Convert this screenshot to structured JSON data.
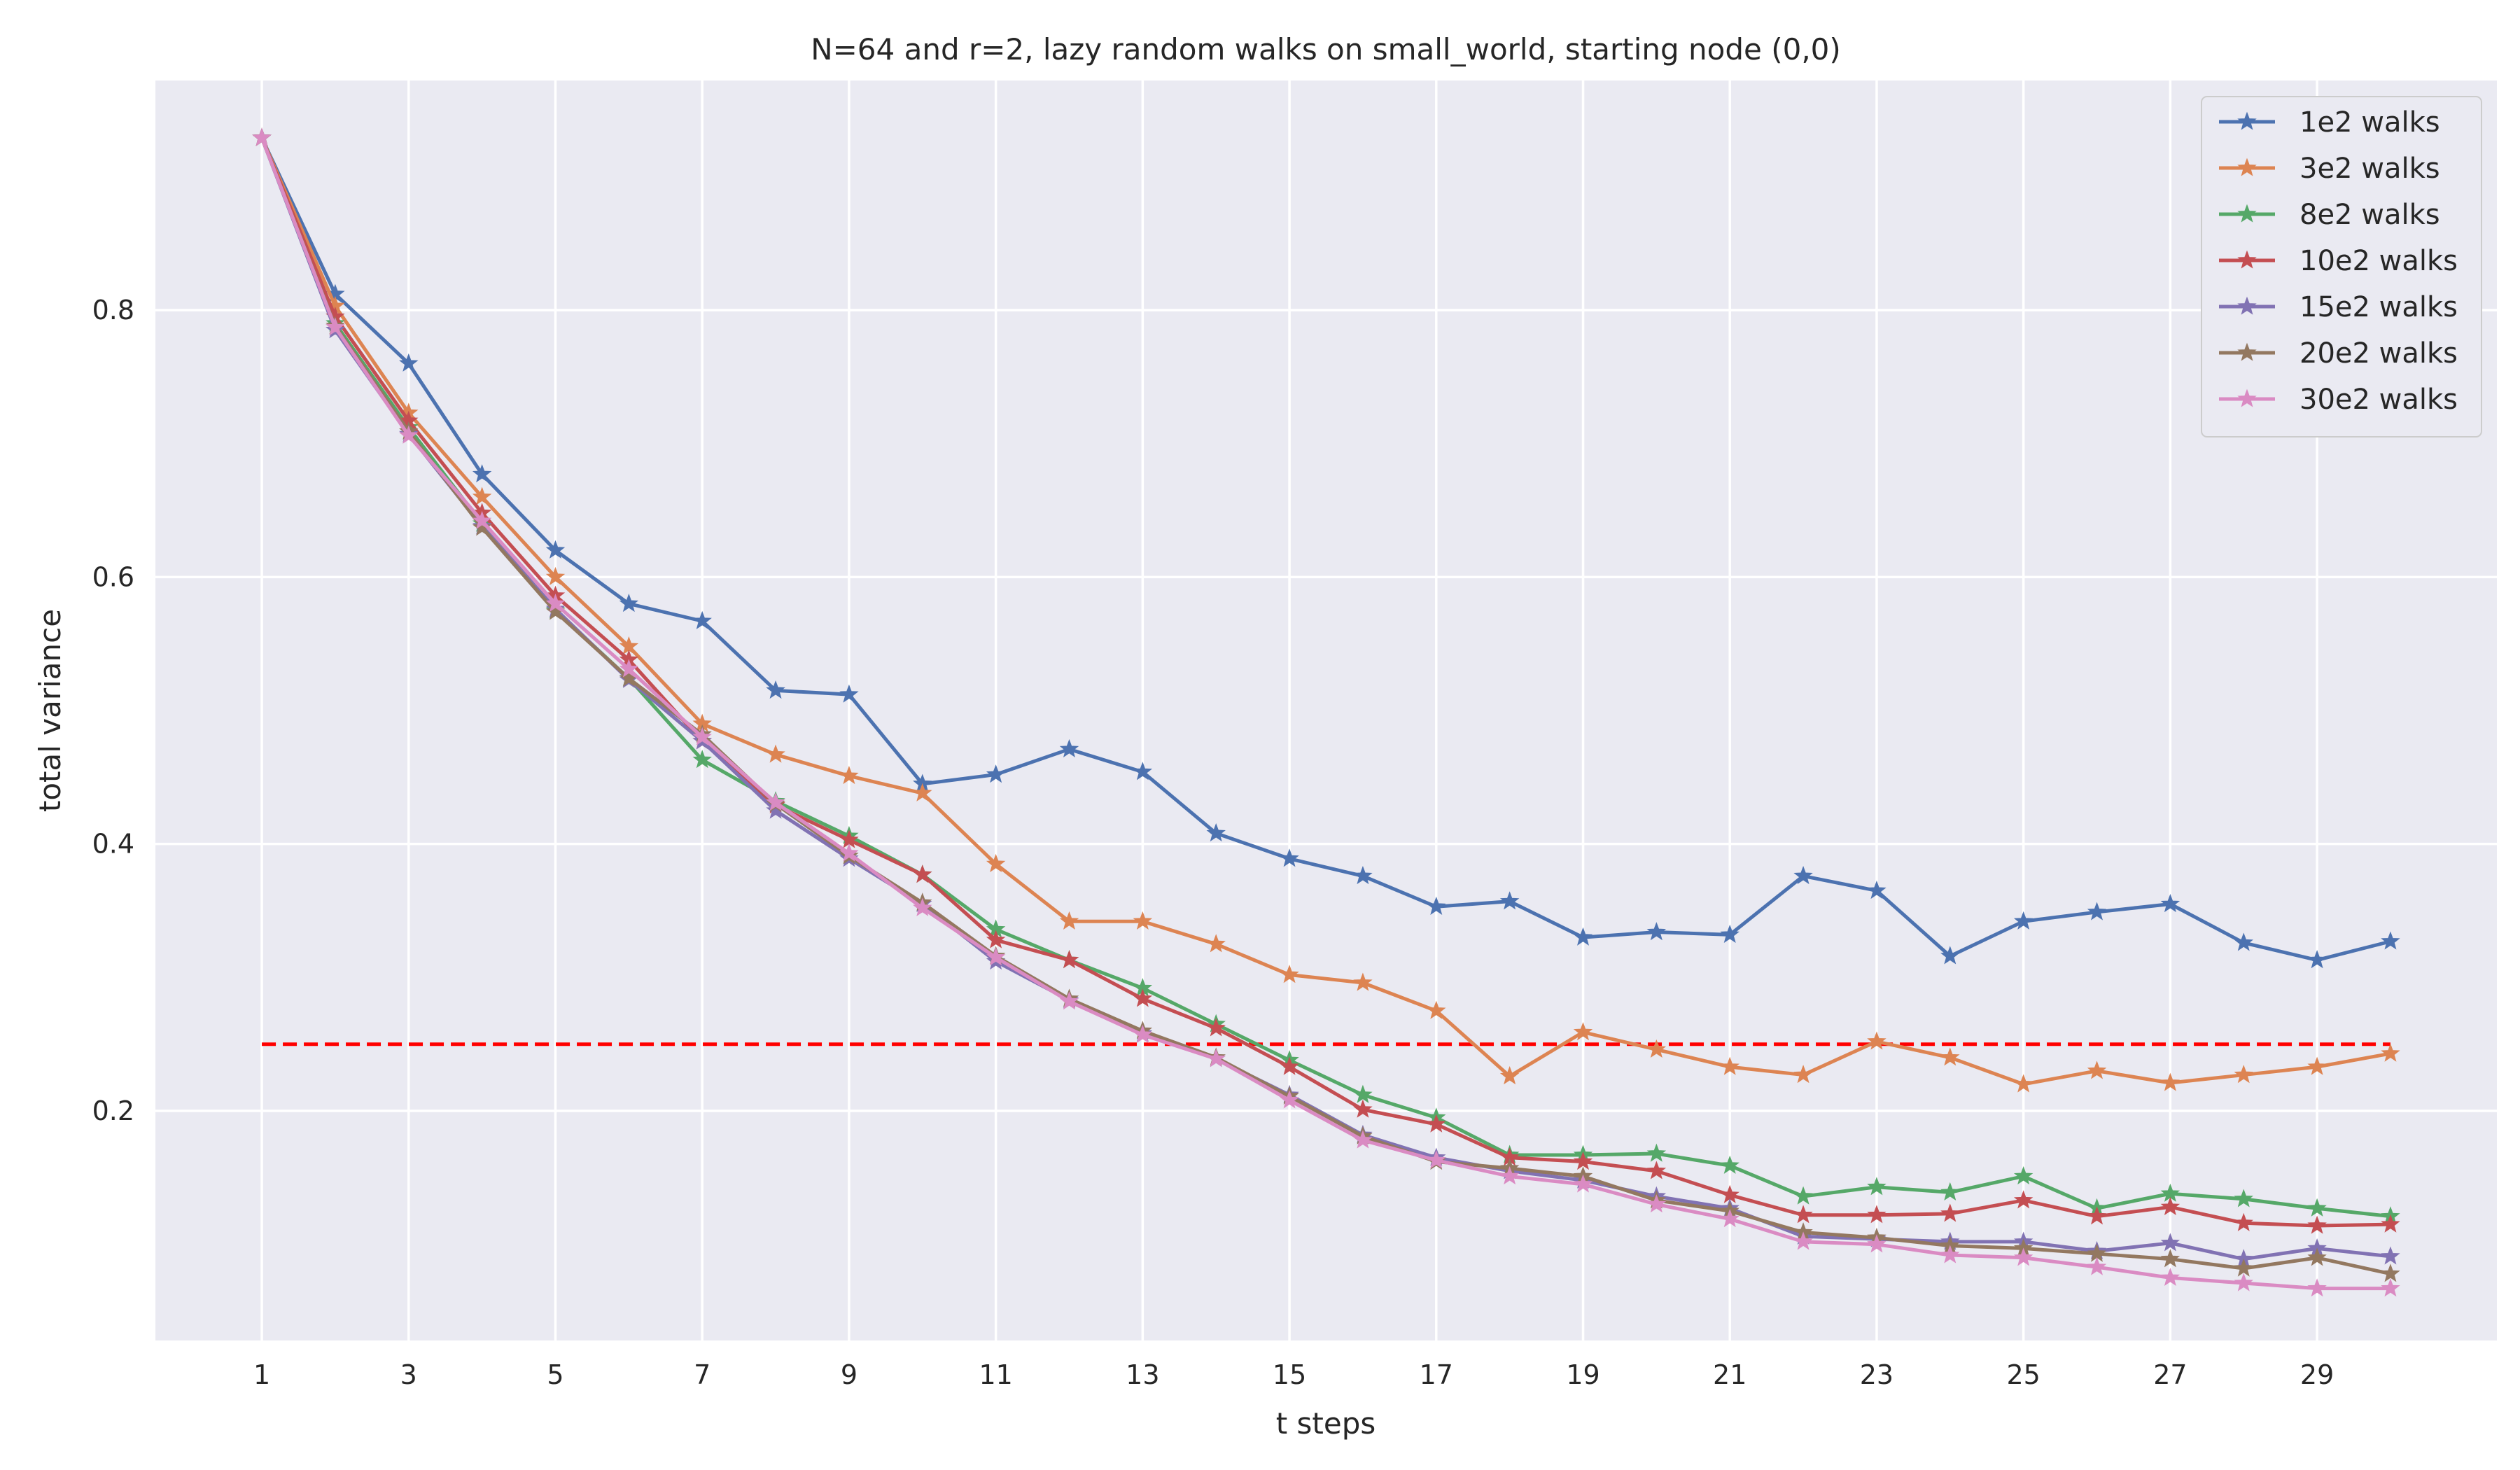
{
  "chart_data": {
    "type": "line",
    "title": "N=64 and r=2, lazy random walks on small_world, starting node (0,0)",
    "xlabel": "t steps",
    "ylabel": "total variance",
    "x": [
      1,
      2,
      3,
      4,
      5,
      6,
      7,
      8,
      9,
      10,
      11,
      12,
      13,
      14,
      15,
      16,
      17,
      18,
      19,
      20,
      21,
      22,
      23,
      24,
      25,
      26,
      27,
      28,
      29,
      30
    ],
    "xticks": [
      "1",
      "3",
      "5",
      "7",
      "9",
      "11",
      "13",
      "15",
      "17",
      "19",
      "21",
      "23",
      "25",
      "27",
      "29"
    ],
    "xtick_values": [
      1,
      3,
      5,
      7,
      9,
      11,
      13,
      15,
      17,
      19,
      21,
      23,
      25,
      27,
      29
    ],
    "yticks": [
      "0.2",
      "0.4",
      "0.6",
      "0.8"
    ],
    "ytick_values": [
      0.2,
      0.4,
      0.6,
      0.8
    ],
    "xlim": [
      -0.45,
      31.45
    ],
    "ylim": [
      0.028,
      0.972
    ],
    "grid": true,
    "legend_position": "top-right",
    "series": [
      {
        "name": "1e2 walks",
        "color": "#4c72b0",
        "values": [
          0.929,
          0.812,
          0.76,
          0.677,
          0.62,
          0.58,
          0.567,
          0.515,
          0.512,
          0.445,
          0.452,
          0.471,
          0.454,
          0.408,
          0.389,
          0.376,
          0.353,
          0.357,
          0.33,
          0.334,
          0.332,
          0.376,
          0.365,
          0.316,
          0.342,
          0.349,
          0.355,
          0.326,
          0.313,
          0.327
        ]
      },
      {
        "name": "3e2 walks",
        "color": "#dd8452",
        "values": [
          0.929,
          0.803,
          0.723,
          0.66,
          0.6,
          0.548,
          0.49,
          0.467,
          0.451,
          0.438,
          0.385,
          0.342,
          0.342,
          0.325,
          0.302,
          0.296,
          0.275,
          0.226,
          0.259,
          0.246,
          0.233,
          0.227,
          0.252,
          0.24,
          0.22,
          0.23,
          0.221,
          0.227,
          0.233,
          0.243
        ]
      },
      {
        "name": "8e2 walks",
        "color": "#55a868",
        "values": [
          0.929,
          0.79,
          0.712,
          0.64,
          0.575,
          0.524,
          0.463,
          0.432,
          0.406,
          0.377,
          0.336,
          0.313,
          0.292,
          0.265,
          0.238,
          0.212,
          0.195,
          0.167,
          0.167,
          0.168,
          0.159,
          0.136,
          0.143,
          0.139,
          0.151,
          0.127,
          0.138,
          0.134,
          0.127,
          0.121
        ]
      },
      {
        "name": "10e2 walks",
        "color": "#c44e52",
        "values": [
          0.929,
          0.795,
          0.717,
          0.648,
          0.586,
          0.538,
          0.477,
          0.429,
          0.403,
          0.377,
          0.328,
          0.313,
          0.284,
          0.262,
          0.233,
          0.201,
          0.19,
          0.165,
          0.162,
          0.155,
          0.137,
          0.122,
          0.122,
          0.123,
          0.133,
          0.121,
          0.128,
          0.116,
          0.114,
          0.115
        ]
      },
      {
        "name": "15e2 walks",
        "color": "#8172b3",
        "values": [
          0.929,
          0.785,
          0.707,
          0.638,
          0.576,
          0.523,
          0.477,
          0.425,
          0.389,
          0.355,
          0.312,
          0.283,
          0.258,
          0.239,
          0.212,
          0.182,
          0.165,
          0.155,
          0.148,
          0.136,
          0.127,
          0.106,
          0.104,
          0.102,
          0.102,
          0.095,
          0.101,
          0.089,
          0.097,
          0.091
        ]
      },
      {
        "name": "20e2 walks",
        "color": "#937860",
        "values": [
          0.929,
          0.788,
          0.709,
          0.637,
          0.574,
          0.524,
          0.482,
          0.43,
          0.391,
          0.356,
          0.316,
          0.284,
          0.26,
          0.24,
          0.211,
          0.181,
          0.162,
          0.157,
          0.151,
          0.133,
          0.125,
          0.109,
          0.105,
          0.099,
          0.097,
          0.093,
          0.089,
          0.082,
          0.09,
          0.078
        ]
      },
      {
        "name": "30e2 walks",
        "color": "#da8bc3",
        "values": [
          0.929,
          0.787,
          0.706,
          0.642,
          0.58,
          0.531,
          0.48,
          0.431,
          0.393,
          0.352,
          0.315,
          0.282,
          0.257,
          0.239,
          0.208,
          0.178,
          0.163,
          0.151,
          0.145,
          0.13,
          0.119,
          0.102,
          0.1,
          0.092,
          0.09,
          0.083,
          0.075,
          0.071,
          0.067,
          0.067
        ]
      }
    ],
    "reference_line": {
      "y": 0.25,
      "color": "#ff0000",
      "style": "dashed"
    }
  },
  "colors": {
    "plot_background": "#eaeaf2",
    "grid": "#ffffff",
    "text": "#262626"
  }
}
